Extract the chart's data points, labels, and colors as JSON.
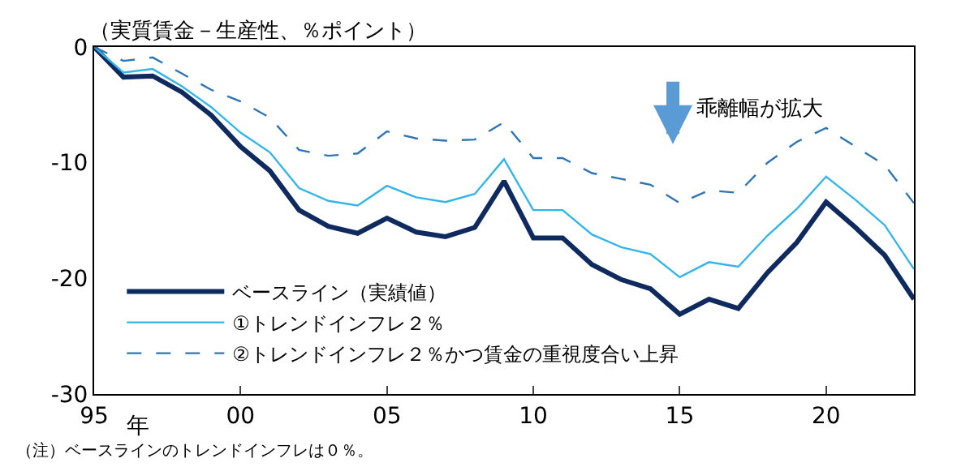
{
  "chart_data": {
    "type": "line",
    "title": "（実質賃金－生産性、％ポイント）",
    "xlabel": "年",
    "x": [
      1995,
      1996,
      1997,
      1998,
      1999,
      2000,
      2001,
      2002,
      2003,
      2004,
      2005,
      2006,
      2007,
      2008,
      2009,
      2010,
      2011,
      2012,
      2013,
      2014,
      2015,
      2016,
      2017,
      2018,
      2019,
      2020,
      2021,
      2022,
      2023
    ],
    "series": [
      {
        "name": "ベースライン（実績値）",
        "color": "#0f2a5e",
        "line_style": "solid",
        "values": [
          0,
          -2.6,
          -2.5,
          -3.9,
          -5.9,
          -8.6,
          -10.7,
          -14.1,
          -15.5,
          -16.1,
          -14.8,
          -16.0,
          -16.4,
          -15.6,
          -11.6,
          -16.5,
          -16.5,
          -18.8,
          -20.1,
          -20.9,
          -23.1,
          -21.8,
          -22.6,
          -19.5,
          -16.9,
          -13.4,
          -15.6,
          -18.0,
          -21.8
        ]
      },
      {
        "name": "①トレンドインフレ２％",
        "color": "#33b5ea",
        "line_style": "solid",
        "values": [
          0,
          -2.2,
          -1.9,
          -3.4,
          -5.2,
          -7.4,
          -9.1,
          -12.2,
          -13.3,
          -13.7,
          -12.0,
          -13.0,
          -13.4,
          -12.7,
          -9.7,
          -14.1,
          -14.1,
          -16.2,
          -17.3,
          -17.9,
          -19.9,
          -18.6,
          -19.0,
          -16.3,
          -14.0,
          -11.2,
          -13.2,
          -15.4,
          -19.2
        ]
      },
      {
        "name": "②トレンドインフレ２％かつ賃金の重視度合い上昇",
        "color": "#2e75b6",
        "line_style": "dashed",
        "values": [
          0,
          -1.2,
          -0.9,
          -2.3,
          -3.7,
          -4.7,
          -6.1,
          -8.9,
          -9.4,
          -9.2,
          -7.3,
          -7.9,
          -8.1,
          -8.0,
          -6.5,
          -9.6,
          -9.6,
          -10.9,
          -11.4,
          -11.9,
          -13.5,
          -12.4,
          -12.6,
          -10.0,
          -8.2,
          -7.0,
          -8.6,
          -10.2,
          -13.5
        ]
      }
    ],
    "xlim": [
      1995,
      2023
    ],
    "xticks": [
      {
        "value": 1995,
        "label": "95"
      },
      {
        "value": 2000,
        "label": "00"
      },
      {
        "value": 2005,
        "label": "05"
      },
      {
        "value": 2010,
        "label": "10"
      },
      {
        "value": 2015,
        "label": "15"
      },
      {
        "value": 2020,
        "label": "20"
      }
    ],
    "ylim": [
      -30,
      0
    ],
    "yticks": [
      0,
      -10,
      -20,
      -30
    ],
    "annotations": [
      "乖離幅が拡大",
      "（注）ベースラインのトレンドインフレは０％。"
    ],
    "legend": "bottom left",
    "marker": "none"
  }
}
